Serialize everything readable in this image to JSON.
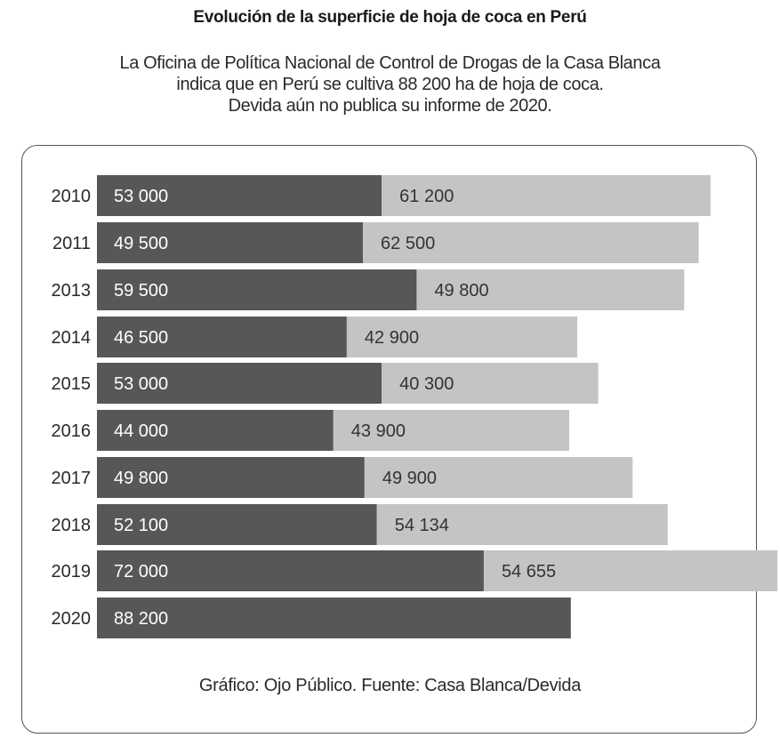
{
  "header": {
    "title": "Evolución de la superficie de hoja de coca en Perú",
    "subtitle_lines": [
      "La Oficina de Política Nacional de Control de Drogas de la Casa Blanca",
      "indica que en Perú se cultiva 88 200 ha de hoja de coca.",
      "Devida aún no publica su informe de 2020."
    ]
  },
  "footer": {
    "source": "Gráfico: Ojo Público. Fuente: Casa Blanca/Devida"
  },
  "colors": {
    "series_1": "#575757",
    "series_2": "#c4c4c4",
    "label_dark_bar": "#ffffff",
    "label_light_bar": "#333333"
  },
  "chart_data": {
    "type": "bar",
    "orientation": "horizontal",
    "stacked": true,
    "title": "Evolución de la superficie de hoja de coca en Perú",
    "xlabel": "",
    "ylabel": "",
    "categories": [
      "2010",
      "2011",
      "2013",
      "2014",
      "2015",
      "2016",
      "2017",
      "2018",
      "2019",
      "2020"
    ],
    "series": [
      {
        "name": "series_1",
        "values": [
          53000,
          49500,
          59500,
          46500,
          53000,
          44000,
          49800,
          52100,
          72000,
          88200
        ],
        "labels": [
          "53 000",
          "49 500",
          "59 500",
          "46 500",
          "53 000",
          "44 000",
          "49 800",
          "52 100",
          "72 000",
          "88 200"
        ]
      },
      {
        "name": "series_2",
        "values": [
          61200,
          62500,
          49800,
          42900,
          40300,
          43900,
          49900,
          54134,
          54655,
          null
        ],
        "labels": [
          "61 200",
          "62 500",
          "49 800",
          "42 900",
          "40 300",
          "43 900",
          "49 900",
          "54 134",
          "54 655",
          null
        ]
      }
    ],
    "xlim": [
      0,
      122000
    ],
    "grid": false,
    "legend": "none"
  }
}
